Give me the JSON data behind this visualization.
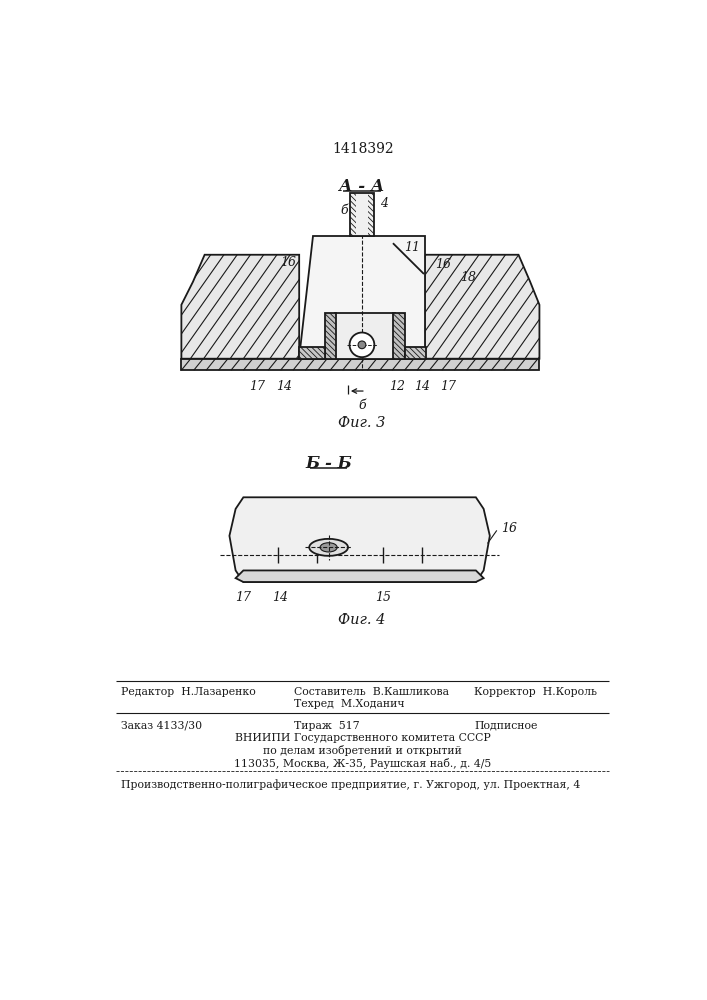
{
  "patent_number": "1418392",
  "background_color": "#ffffff",
  "line_color": "#1a1a1a",
  "fig_width": 7.07,
  "fig_height": 10.0,
  "section_AA_label": "А - А",
  "section_BB_label": "Б - Б",
  "fig3_label": "Фиг. 3",
  "fig4_label": "Фиг. 4",
  "editor_line": "Редактор  Н.Лазаренко",
  "compiler_line": "Составитель  В.Кашликова",
  "techred_line": "Техред  М.Ходанич",
  "corrector_line": "Корректор  Н.Король",
  "order_line": "Заказ 4133/30",
  "tirazh_line": "Тираж  517",
  "podpisnoe_line": "Подписное",
  "vniiipi_line": "ВНИИПИ Государственного комитета СССР",
  "vniiipi_line2": "по делам изобретений и открытий",
  "vniiipi_line3": "113035, Москва, Ж-35, Раушская наб., д. 4/5",
  "production_line": "Производственно-полиграфическое предприятие, г. Ужгород, ул. Проектная, 4"
}
